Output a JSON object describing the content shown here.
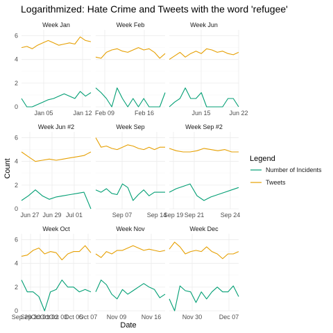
{
  "chart_data": {
    "type": "line",
    "title": "Logarithmized: Hate Crime and Tweets with the word 'refugee'",
    "xlabel": "Date",
    "ylabel": "Count",
    "ylim": [
      0,
      6.5
    ],
    "yticks": [
      0,
      2,
      4,
      6
    ],
    "grid": true,
    "legend": {
      "title": "Legend",
      "position": "right",
      "entries": [
        {
          "name": "Number of Incidents",
          "color": "#009E73"
        },
        {
          "name": "Tweets",
          "color": "#E69F00"
        }
      ]
    },
    "panels": [
      {
        "title": "Week Jan",
        "xticks": [
          {
            "label": "Jan 05",
            "pos": 0.32
          },
          {
            "label": "Jan 12",
            "pos": 0.88
          }
        ],
        "series": [
          {
            "name": "Tweets",
            "values": [
              5.0,
              5.1,
              4.9,
              5.2,
              5.4,
              5.6,
              5.4,
              5.2,
              5.3,
              5.4,
              5.3,
              5.9,
              5.6,
              5.5
            ]
          },
          {
            "name": "Number of Incidents",
            "values": [
              0.7,
              0.0,
              0.0,
              0.2,
              0.4,
              0.6,
              0.7,
              0.9,
              1.1,
              0.9,
              0.7,
              1.3,
              0.9,
              1.2
            ]
          }
        ]
      },
      {
        "title": "Week Feb",
        "xticks": [
          {
            "label": "Feb 09",
            "pos": 0.13
          },
          {
            "label": "Feb 16",
            "pos": 0.7
          }
        ],
        "series": [
          {
            "name": "Tweets",
            "values": [
              4.2,
              4.1,
              4.6,
              4.8,
              4.9,
              4.7,
              4.6,
              4.8,
              5.0,
              4.8,
              4.9,
              4.6,
              4.1,
              4.5
            ]
          },
          {
            "name": "Number of Incidents",
            "values": [
              1.6,
              1.2,
              0.7,
              0.0,
              1.6,
              0.7,
              0.0,
              0.7,
              0.0,
              0.7,
              0.0,
              0.0,
              0.0,
              1.2
            ]
          }
        ]
      },
      {
        "title": "Week Jun",
        "xticks": [
          {
            "label": "Jun 15",
            "pos": 0.46
          },
          {
            "label": "Jun 22",
            "pos": 1.0
          }
        ],
        "series": [
          {
            "name": "Tweets",
            "values": [
              4.0,
              4.3,
              4.6,
              4.2,
              4.5,
              4.7,
              4.5,
              4.9,
              4.8,
              4.6,
              4.7,
              4.5,
              4.4,
              4.6
            ]
          },
          {
            "name": "Number of Incidents",
            "values": [
              0.0,
              0.4,
              0.7,
              1.6,
              0.7,
              0.7,
              1.2,
              0.0,
              0.0,
              0.0,
              0.0,
              0.7,
              0.7,
              0.0
            ]
          }
        ]
      },
      {
        "title": "Week Jun #2",
        "xticks": [
          {
            "label": "Jun 27",
            "pos": 0.12
          },
          {
            "label": "Jun 29",
            "pos": 0.44
          },
          {
            "label": "Jul 01",
            "pos": 0.76
          }
        ],
        "series": [
          {
            "name": "Tweets",
            "values": [
              4.8,
              4.4,
              4.0,
              4.1,
              4.2,
              4.1,
              4.2,
              4.3,
              4.4,
              4.5,
              4.8
            ]
          },
          {
            "name": "Number of Incidents",
            "values": [
              0.7,
              1.1,
              1.6,
              1.1,
              0.8,
              1.0,
              1.1,
              1.2,
              1.3,
              1.4,
              0.0
            ]
          }
        ]
      },
      {
        "title": "Week Sep",
        "xticks": [
          {
            "label": "Sep 07",
            "pos": 0.38
          },
          {
            "label": "Sep 14",
            "pos": 0.88
          }
        ],
        "series": [
          {
            "name": "Tweets",
            "values": [
              6.0,
              5.2,
              5.3,
              5.1,
              5.0,
              5.2,
              5.4,
              5.3,
              5.1,
              5.0,
              5.2,
              5.0,
              5.2,
              5.2
            ]
          },
          {
            "name": "Number of Incidents",
            "values": [
              1.6,
              1.4,
              1.7,
              1.3,
              1.2,
              2.1,
              1.8,
              0.7,
              1.2,
              1.6,
              1.1,
              1.4,
              1.4,
              1.4
            ]
          }
        ]
      },
      {
        "title": "Week Sep #2",
        "xticks": [
          {
            "label": "Sep 19",
            "pos": 0.06
          },
          {
            "label": "Sep 21",
            "pos": 0.36
          },
          {
            "label": "Sep 24",
            "pos": 0.88
          }
        ],
        "series": [
          {
            "name": "Tweets",
            "values": [
              5.1,
              4.9,
              4.8,
              4.8,
              4.9,
              5.1,
              5.0,
              4.9,
              5.0,
              4.8,
              4.8
            ]
          },
          {
            "name": "Number of Incidents",
            "values": [
              1.4,
              1.7,
              1.9,
              2.1,
              1.1,
              0.7,
              1.0,
              1.2,
              1.4,
              1.6,
              1.8
            ]
          }
        ]
      },
      {
        "title": "Week Oct",
        "xticks": [
          {
            "label": "Sep 29",
            "pos": 0.0
          },
          {
            "label": "Sep 30",
            "pos": 0.13
          },
          {
            "label": "Oct 01",
            "pos": 0.27
          },
          {
            "label": "Oct 02",
            "pos": 0.4
          },
          {
            "label": "Oct 03",
            "pos": 0.53
          },
          {
            "label": "Oct 05",
            "pos": 0.75
          },
          {
            "label": "Oct 07",
            "pos": 0.96
          }
        ],
        "series": [
          {
            "name": "Tweets",
            "values": [
              4.6,
              4.7,
              5.1,
              5.3,
              4.8,
              5.0,
              4.9,
              4.3,
              4.8,
              5.0,
              5.0,
              5.5,
              4.9
            ]
          },
          {
            "name": "Number of Incidents",
            "values": [
              2.6,
              1.6,
              1.6,
              1.2,
              0.0,
              1.6,
              1.8,
              2.6,
              2.0,
              2.0,
              1.6,
              1.8,
              1.6
            ]
          }
        ]
      },
      {
        "title": "Week Nov",
        "xticks": [
          {
            "label": "Nov 09",
            "pos": 0.3
          },
          {
            "label": "Nov 16",
            "pos": 0.8
          }
        ],
        "series": [
          {
            "name": "Tweets",
            "values": [
              4.8,
              4.5,
              5.0,
              4.8,
              5.1,
              5.1,
              5.3,
              5.5,
              5.3,
              5.1,
              5.2,
              5.1,
              5.0,
              5.1
            ]
          },
          {
            "name": "Number of Incidents",
            "values": [
              1.6,
              2.6,
              2.2,
              1.4,
              1.0,
              1.8,
              1.4,
              1.7,
              2.0,
              2.3,
              2.0,
              1.8,
              1.1,
              1.4
            ]
          }
        ]
      },
      {
        "title": "Week Dec",
        "xticks": [
          {
            "label": "Nov 30",
            "pos": 0.33
          },
          {
            "label": "Dec 07",
            "pos": 0.86
          }
        ],
        "series": [
          {
            "name": "Tweets",
            "values": [
              5.2,
              5.8,
              5.4,
              4.8,
              5.0,
              5.1,
              5.0,
              5.4,
              5.0,
              4.8,
              4.4,
              4.8,
              4.8,
              5.0
            ]
          },
          {
            "name": "Number of Incidents",
            "values": [
              1.0,
              0.0,
              2.1,
              1.7,
              1.6,
              0.7,
              1.6,
              1.0,
              1.6,
              2.0,
              1.6,
              1.6,
              2.1,
              1.2
            ]
          }
        ]
      }
    ]
  }
}
